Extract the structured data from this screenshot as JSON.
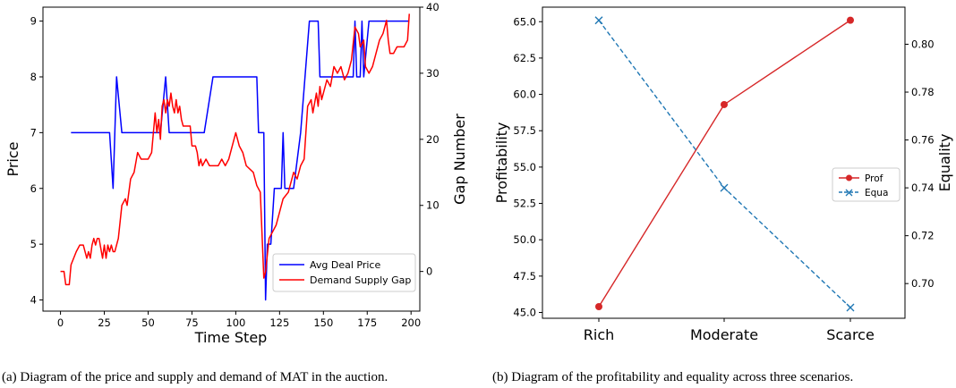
{
  "chart_data": [
    {
      "type": "line",
      "caption": "(a) Diagram of the price and supply and demand of MAT in the auction.",
      "xlabel": "Time Step",
      "ylabel": "Price",
      "y2label": "Gap Number",
      "xlim": [
        -10,
        205
      ],
      "ylim": [
        3.8,
        9.25
      ],
      "y2lim": [
        -6,
        40
      ],
      "xticks": [
        0,
        25,
        50,
        75,
        100,
        125,
        150,
        175,
        200
      ],
      "yticks": [
        4,
        5,
        6,
        7,
        8,
        9
      ],
      "y2ticks": [
        0,
        10,
        20,
        30,
        40
      ],
      "legend_position": "lower right",
      "series": [
        {
          "name": "Avg Deal Price",
          "axis": "left",
          "color": "#0000ff",
          "points": [
            [
              6,
              7
            ],
            [
              28,
              7
            ],
            [
              30,
              6
            ],
            [
              32,
              8
            ],
            [
              35,
              7
            ],
            [
              57,
              7
            ],
            [
              60,
              8
            ],
            [
              62,
              7
            ],
            [
              82,
              7
            ],
            [
              87,
              8
            ],
            [
              112,
              8
            ],
            [
              113,
              7
            ],
            [
              116,
              7
            ],
            [
              117,
              4
            ],
            [
              118,
              5
            ],
            [
              120,
              5
            ],
            [
              122,
              6
            ],
            [
              126,
              6
            ],
            [
              127,
              7
            ],
            [
              128,
              6
            ],
            [
              133,
              6
            ],
            [
              137,
              7
            ],
            [
              142,
              9
            ],
            [
              147,
              9
            ],
            [
              148,
              8
            ],
            [
              167,
              8
            ],
            [
              168,
              9
            ],
            [
              169,
              8
            ],
            [
              171,
              8
            ],
            [
              172,
              9
            ],
            [
              173,
              8
            ],
            [
              176,
              9
            ],
            [
              199,
              9
            ]
          ]
        },
        {
          "name": "Demand Supply Gap",
          "axis": "right",
          "color": "#ff0000",
          "points": [
            [
              0,
              0
            ],
            [
              2,
              0
            ],
            [
              3,
              -2
            ],
            [
              5,
              -2
            ],
            [
              6,
              1
            ],
            [
              9,
              3
            ],
            [
              11,
              4
            ],
            [
              13,
              4
            ],
            [
              14,
              3
            ],
            [
              15,
              2
            ],
            [
              16,
              3
            ],
            [
              17,
              2
            ],
            [
              18,
              4
            ],
            [
              19,
              5
            ],
            [
              20,
              4
            ],
            [
              21,
              5
            ],
            [
              22,
              5
            ],
            [
              24,
              2
            ],
            [
              25,
              4
            ],
            [
              26,
              2
            ],
            [
              27,
              4
            ],
            [
              28,
              3
            ],
            [
              29,
              4
            ],
            [
              30,
              3
            ],
            [
              31,
              3
            ],
            [
              33,
              5
            ],
            [
              35,
              10
            ],
            [
              37,
              11
            ],
            [
              38,
              10
            ],
            [
              40,
              14
            ],
            [
              42,
              15
            ],
            [
              44,
              18
            ],
            [
              46,
              17
            ],
            [
              50,
              17
            ],
            [
              52,
              18
            ],
            [
              54,
              24
            ],
            [
              55,
              21
            ],
            [
              56,
              23
            ],
            [
              57,
              20
            ],
            [
              58,
              25
            ],
            [
              59,
              26
            ],
            [
              60,
              24
            ],
            [
              61,
              26
            ],
            [
              62,
              25
            ],
            [
              63,
              27
            ],
            [
              64,
              25
            ],
            [
              65,
              24
            ],
            [
              66,
              26
            ],
            [
              67,
              24
            ],
            [
              68,
              25
            ],
            [
              69,
              23
            ],
            [
              70,
              22
            ],
            [
              74,
              22
            ],
            [
              75,
              19
            ],
            [
              77,
              19
            ],
            [
              78,
              18
            ],
            [
              79,
              16
            ],
            [
              80,
              17
            ],
            [
              81,
              16
            ],
            [
              83,
              17
            ],
            [
              85,
              16
            ],
            [
              90,
              16
            ],
            [
              92,
              17
            ],
            [
              94,
              16
            ],
            [
              96,
              17
            ],
            [
              98,
              19
            ],
            [
              100,
              21
            ],
            [
              102,
              19
            ],
            [
              104,
              18
            ],
            [
              106,
              16
            ],
            [
              110,
              15
            ],
            [
              112,
              13
            ],
            [
              114,
              12
            ],
            [
              116,
              -1
            ],
            [
              117,
              0
            ],
            [
              119,
              5
            ],
            [
              121,
              6
            ],
            [
              123,
              7
            ],
            [
              125,
              9
            ],
            [
              127,
              11
            ],
            [
              130,
              12
            ],
            [
              133,
              15
            ],
            [
              135,
              14
            ],
            [
              137,
              16
            ],
            [
              139,
              17
            ],
            [
              141,
              25
            ],
            [
              143,
              26
            ],
            [
              144,
              24
            ],
            [
              146,
              27
            ],
            [
              147,
              25
            ],
            [
              148,
              28
            ],
            [
              149,
              26
            ],
            [
              150,
              27
            ],
            [
              152,
              29
            ],
            [
              154,
              28
            ],
            [
              156,
              31
            ],
            [
              158,
              30
            ],
            [
              160,
              31
            ],
            [
              162,
              29
            ],
            [
              164,
              30
            ],
            [
              166,
              32
            ],
            [
              168,
              37
            ],
            [
              170,
              36
            ],
            [
              171,
              34
            ],
            [
              173,
              35
            ],
            [
              174,
              31
            ],
            [
              176,
              30
            ],
            [
              178,
              31
            ],
            [
              180,
              33
            ],
            [
              182,
              35
            ],
            [
              184,
              36
            ],
            [
              186,
              38
            ],
            [
              187,
              35
            ],
            [
              188,
              33
            ],
            [
              190,
              33
            ],
            [
              192,
              34
            ],
            [
              194,
              34
            ],
            [
              196,
              34
            ],
            [
              198,
              35
            ],
            [
              199,
              39
            ]
          ]
        }
      ]
    },
    {
      "type": "line",
      "caption": "(b) Diagram of the profitability and equality across three scenarios.",
      "ylabel": "Profitability",
      "y2label": "Equality",
      "categories": [
        "Rich",
        "Moderate",
        "Scarce"
      ],
      "ylim": [
        44.6,
        66.0
      ],
      "y2lim": [
        0.6855,
        0.8155
      ],
      "yticks": [
        "45.0",
        "47.5",
        "50.0",
        "52.5",
        "55.0",
        "57.5",
        "60.0",
        "62.5",
        "65.0"
      ],
      "y2ticks": [
        "0.70",
        "0.72",
        "0.74",
        "0.76",
        "0.78",
        "0.80"
      ],
      "legend_position": "center right",
      "series": [
        {
          "name": "Prof",
          "axis": "left",
          "color": "#d62728",
          "marker": "circle",
          "linestyle": "solid",
          "values": [
            45.4,
            59.3,
            65.1
          ]
        },
        {
          "name": "Equa",
          "axis": "right",
          "color": "#1f77b4",
          "marker": "x",
          "linestyle": "dashed",
          "values": [
            0.81,
            0.74,
            0.69
          ]
        }
      ]
    }
  ]
}
